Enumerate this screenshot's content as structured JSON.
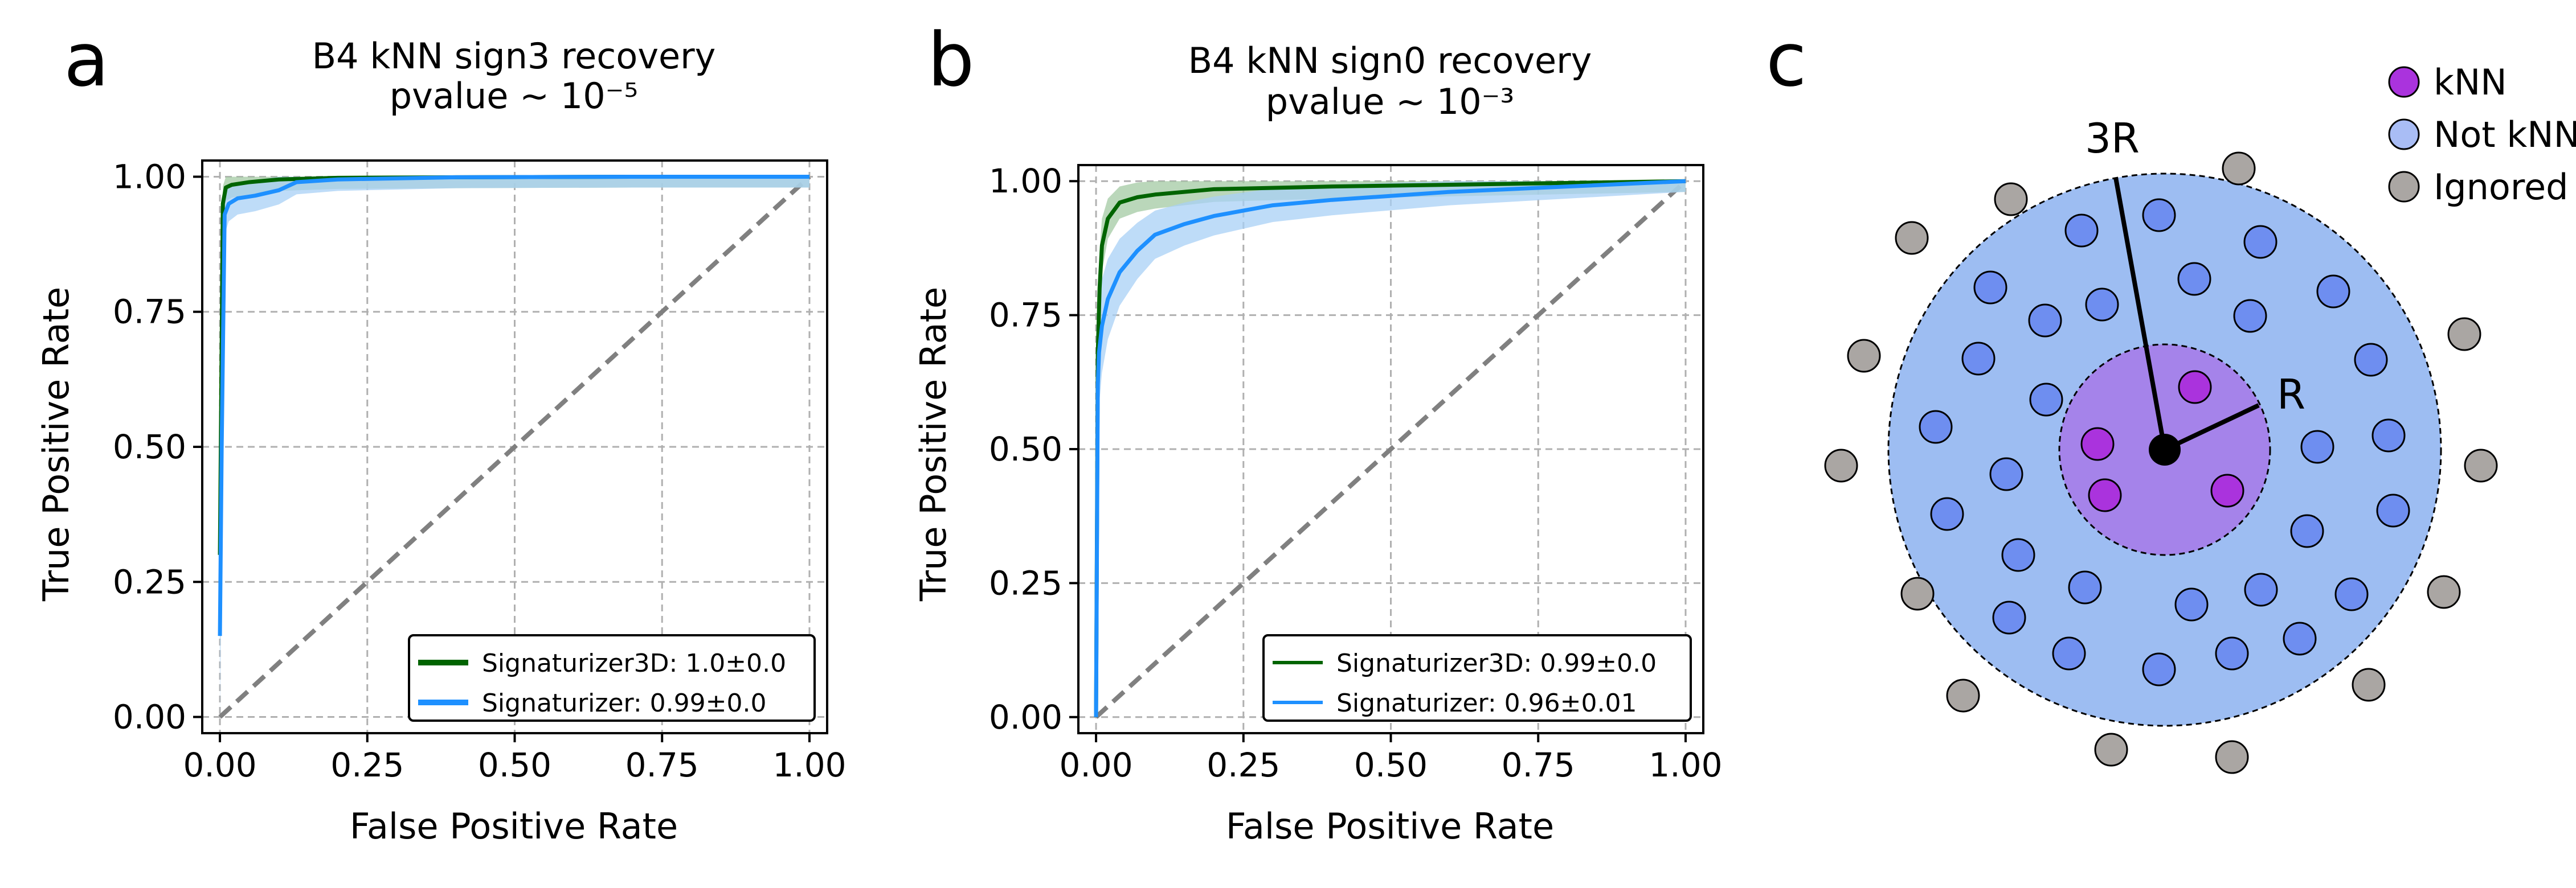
{
  "panels": {
    "a": {
      "letter": "a"
    },
    "b": {
      "letter": "b"
    },
    "c": {
      "letter": "c"
    }
  },
  "chart_data": [
    {
      "panel": "a",
      "type": "line",
      "title_line1": "B4 kNN sign3 recovery",
      "title_line2": "pvalue ~ 10⁻⁵",
      "xlabel": "False Positive Rate",
      "ylabel": "True Positive Rate",
      "xlim": [
        -0.03,
        1.03
      ],
      "ylim": [
        -0.03,
        1.03
      ],
      "xticks": [
        "0.00",
        "0.25",
        "0.50",
        "0.75",
        "1.00"
      ],
      "yticks": [
        "0.00",
        "0.25",
        "0.50",
        "0.75",
        "1.00"
      ],
      "grid": true,
      "legend_position": "lower-right",
      "diagonal": true,
      "series": [
        {
          "name": "Signaturizer3D: 1.0±0.0",
          "color": "#006400",
          "band_color": "#a3c9a3",
          "x": [
            0,
            0.005,
            0.01,
            0.02,
            0.05,
            0.1,
            0.2,
            0.4,
            0.7,
            1.0
          ],
          "y": [
            0.3,
            0.95,
            0.98,
            0.985,
            0.99,
            0.995,
            0.998,
            0.999,
            1.0,
            1.0
          ]
        },
        {
          "name": "Signaturizer: 0.99±0.0",
          "color": "#1e90ff",
          "band_color": "#a8d0f5",
          "x": [
            0,
            0.003,
            0.008,
            0.015,
            0.03,
            0.06,
            0.1,
            0.13,
            0.2,
            0.4,
            0.7,
            1.0
          ],
          "y": [
            0.15,
            0.5,
            0.93,
            0.95,
            0.96,
            0.965,
            0.975,
            0.99,
            0.995,
            0.999,
            1.0,
            1.0
          ]
        }
      ]
    },
    {
      "panel": "b",
      "type": "line",
      "title_line1": "B4 kNN sign0 recovery",
      "title_line2": "pvalue ~ 10⁻³",
      "xlabel": "False Positive Rate",
      "ylabel": "True Positive Rate",
      "xlim": [
        -0.03,
        1.03
      ],
      "ylim": [
        -0.03,
        1.03
      ],
      "xticks": [
        "0.00",
        "0.25",
        "0.50",
        "0.75",
        "1.00"
      ],
      "yticks": [
        "0.00",
        "0.25",
        "0.50",
        "0.75",
        "1.00"
      ],
      "grid": true,
      "legend_position": "lower-right",
      "diagonal": true,
      "series": [
        {
          "name": "Signaturizer3D: 0.99±0.0",
          "color": "#006400",
          "band_color": "#a3c9a3",
          "x": [
            0,
            0.003,
            0.006,
            0.01,
            0.02,
            0.04,
            0.07,
            0.1,
            0.2,
            0.4,
            0.7,
            1.0
          ],
          "y": [
            0.0,
            0.68,
            0.8,
            0.88,
            0.93,
            0.96,
            0.97,
            0.975,
            0.985,
            0.99,
            0.995,
            1.0
          ]
        },
        {
          "name": "Signaturizer: 0.96±0.01",
          "color": "#1e90ff",
          "band_color": "#a8d0f5",
          "x": [
            0,
            0.003,
            0.005,
            0.01,
            0.02,
            0.04,
            0.07,
            0.1,
            0.15,
            0.2,
            0.3,
            0.4,
            0.6,
            0.8,
            1.0
          ],
          "y": [
            0.0,
            0.62,
            0.68,
            0.73,
            0.78,
            0.83,
            0.87,
            0.9,
            0.92,
            0.935,
            0.955,
            0.965,
            0.98,
            0.99,
            1.0
          ]
        }
      ]
    }
  ],
  "diagram_c": {
    "label_3R": "3R",
    "label_R": "R",
    "legend": [
      {
        "label": "kNN",
        "color": "#aa33dd"
      },
      {
        "label": "Not kNN",
        "color": "#a9bdf5"
      },
      {
        "label": "Ignored",
        "color": "#aaa6a3"
      }
    ],
    "colors": {
      "outer_fill": "#9dbdf2",
      "inner_fill": "#a583ea",
      "knn_dot": "#aa33dd",
      "notknn_dot": "#6e8ef0",
      "ignored_dot": "#aaa6a3"
    }
  }
}
